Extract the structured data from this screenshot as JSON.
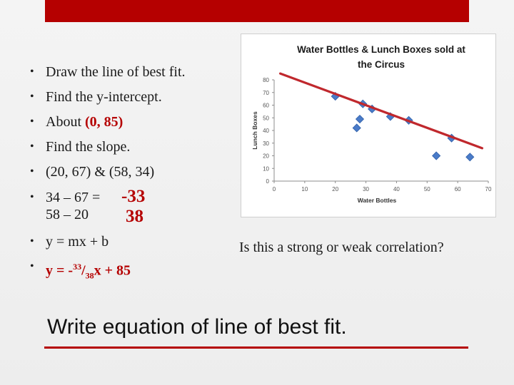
{
  "colors": {
    "accent": "#b50000",
    "marker": "#4a7bc8",
    "trend": "#c0282d"
  },
  "bullets": {
    "b1": "Draw the line of best fit.",
    "b2": "Find the y-intercept.",
    "b3_prefix": "About ",
    "b3_value": "(0, 85)",
    "b4": "Find the slope.",
    "b5": "(20, 67) & (58, 34)",
    "b6_expr": "34 – 67 = ",
    "b6_num": "-33",
    "b6_den_expr": "58 – 20",
    "b6_den": "38",
    "b7": "y = mx + b",
    "b8_a": "y = -",
    "b8_num": "33",
    "b8_slash": "/",
    "b8_den": "38",
    "b8_b": "x + 85"
  },
  "question": "Is this a strong or weak correlation?",
  "heading": "Write equation of line of best fit.",
  "chart_data": {
    "type": "scatter",
    "title": "Water Bottles & Lunch Boxes sold at the Circus",
    "title_lines": [
      "Water Bottles & Lunch Boxes sold at",
      "the Circus"
    ],
    "xlabel": "Water Bottles",
    "ylabel": "Lunch Boxes",
    "xlim": [
      0,
      70
    ],
    "ylim": [
      0,
      80
    ],
    "xticks": [
      0,
      10,
      20,
      30,
      40,
      50,
      60,
      70
    ],
    "yticks": [
      0,
      10,
      20,
      30,
      40,
      50,
      60,
      70,
      80
    ],
    "grid": false,
    "points": [
      {
        "x": 20,
        "y": 67
      },
      {
        "x": 27,
        "y": 42
      },
      {
        "x": 28,
        "y": 49
      },
      {
        "x": 29,
        "y": 61
      },
      {
        "x": 32,
        "y": 57
      },
      {
        "x": 38,
        "y": 51
      },
      {
        "x": 44,
        "y": 48
      },
      {
        "x": 53,
        "y": 20
      },
      {
        "x": 58,
        "y": 34
      },
      {
        "x": 64,
        "y": 19
      }
    ],
    "trend_line": {
      "x": [
        2,
        68
      ],
      "y": [
        85,
        26
      ]
    }
  }
}
